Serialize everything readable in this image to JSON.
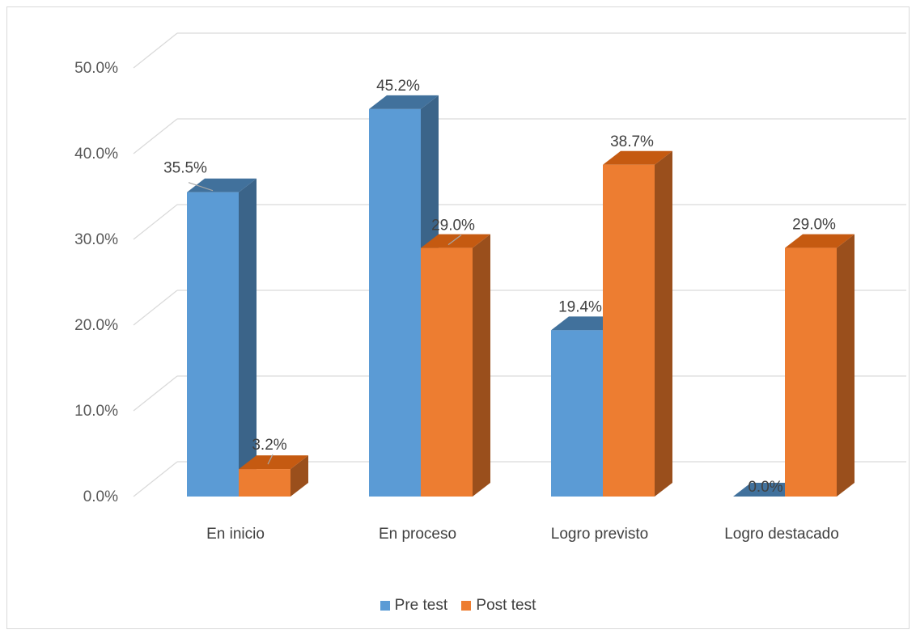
{
  "chart_data": {
    "type": "bar",
    "title": "",
    "xlabel": "",
    "ylabel": "",
    "categories": [
      "En inicio",
      "En proceso",
      "Logro previsto",
      "Logro destacado"
    ],
    "series": [
      {
        "name": "Pre test",
        "values": [
          35.5,
          45.2,
          19.4,
          0.0
        ],
        "labels": [
          "35.5%",
          "45.2%",
          "19.4%",
          "0.0%"
        ],
        "color": "#5b9bd5",
        "side_color": "#3b6489",
        "top_color": "#41719c"
      },
      {
        "name": "Post test",
        "values": [
          3.2,
          29.0,
          38.7,
          29.0
        ],
        "labels": [
          "3.2%",
          "29.0%",
          "38.7%",
          "29.0%"
        ],
        "color": "#ed7d31",
        "side_color": "#9a4f1c",
        "top_color": "#c55a11"
      }
    ],
    "ylim": [
      0,
      50
    ],
    "yticks": [
      "0.0%",
      "10.0%",
      "20.0%",
      "30.0%",
      "40.0%",
      "50.0%"
    ],
    "grid": true,
    "legend_position": "bottom",
    "three_d": true
  }
}
